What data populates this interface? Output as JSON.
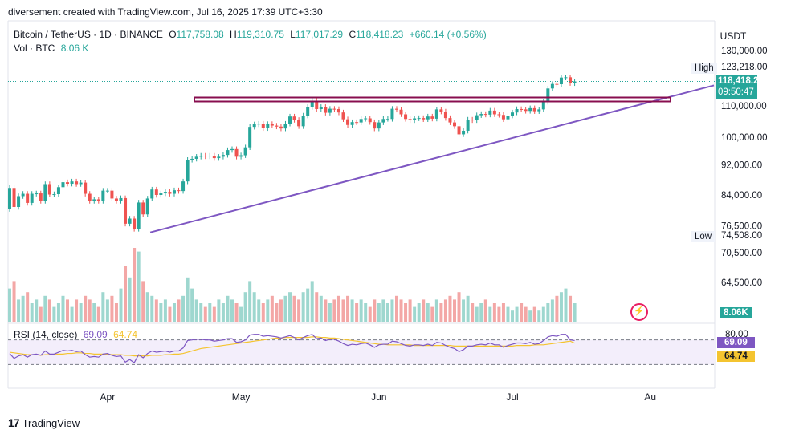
{
  "header": {
    "caption": "diversement created with TradingView.com, Jul 16, 2025 17:39 UTC+3:30"
  },
  "legend": {
    "symbol": "Bitcoin / TetherUS · 1D · BINANCE",
    "o_label": "O",
    "o": "117,758.08",
    "h_label": "H",
    "h": "119,310.75",
    "l_label": "L",
    "l": "117,017.29",
    "c_label": "C",
    "c": "118,418.23",
    "change": "+660.14 (+0.56%)",
    "vol_label": "Vol · BTC",
    "vol_value": "8.06 K",
    "rsi_label": "RSI (14, close)",
    "rsi_value": "69.09",
    "rsi_ma_value": "64.74"
  },
  "price_axis": {
    "currency": "USDT",
    "high_label": "High",
    "high_value": "123,218.00",
    "low_label": "Low",
    "low_value": "74,508.00",
    "last_price": "118,418.23",
    "countdown": "09:50:47",
    "volume_tag": "8.06K",
    "rsi_tag": "69.09",
    "rsi_ma_tag": "64.74"
  },
  "footer": {
    "brand": "TradingView",
    "logo_text": "17"
  },
  "colors": {
    "up": "#26a69a",
    "down": "#ef5350",
    "vol_up": "#9ed7cf",
    "vol_down": "#f3a7a6",
    "trendline": "#7e57c2",
    "box": "#880e4f",
    "rsi_line": "#7e57c2",
    "rsi_ma": "#f4c430",
    "last_price_bg": "#26a69a"
  },
  "chart_data": {
    "type": "candlestick",
    "symbol": "Bitcoin / TetherUS",
    "interval": "1D",
    "price_ticks": [
      130000,
      120000,
      110000,
      100000,
      92000,
      84000,
      76500,
      70500,
      64500,
      60000
    ],
    "price_tick_labels": [
      "130,000.00",
      "",
      "110,000.00",
      "100,000.00",
      "92,000.00",
      "84,000.00",
      "76,500.00",
      "70,500.00",
      "64,500.00",
      ""
    ],
    "x_labels": [
      "Apr",
      "May",
      "Jun",
      "Jul",
      "Au"
    ],
    "x_label_index": [
      22,
      52,
      83,
      113,
      144
    ],
    "first_date": "2025-03-10",
    "close": [
      85800,
      81000,
      83700,
      84300,
      82000,
      84300,
      84400,
      82500,
      86800,
      84100,
      84200,
      86000,
      87300,
      86900,
      87500,
      86800,
      87200,
      84300,
      82500,
      82900,
      82500,
      85100,
      85100,
      83100,
      82500,
      83200,
      77000,
      78200,
      75800,
      82100,
      79200,
      83100,
      85400,
      84000,
      84400,
      84800,
      84300,
      85200,
      85000,
      87500,
      93400,
      93700,
      94300,
      94600,
      94400,
      94600,
      93900,
      94300,
      94800,
      96200,
      96500,
      94300,
      94700,
      97000,
      103200,
      104000,
      104200,
      102800,
      104100,
      103600,
      103300,
      102700,
      104200,
      106500,
      105400,
      103400,
      106800,
      109600,
      111700,
      108900,
      109600,
      107700,
      109000,
      108900,
      107800,
      105600,
      103800,
      104700,
      104600,
      105700,
      105900,
      104700,
      102700,
      104600,
      105700,
      105700,
      109000,
      108700,
      107200,
      105700,
      105300,
      105900,
      106000,
      105600,
      106500,
      105800,
      108800,
      108100,
      106000,
      104600,
      103400,
      100900,
      102000,
      105500,
      105300,
      106900,
      107300,
      107100,
      108400,
      107200,
      107000,
      105600,
      106800,
      107800,
      108900,
      108800,
      108300,
      109200,
      108200,
      108800,
      111300,
      115900,
      117500,
      117400,
      119800,
      119900,
      117800,
      118400
    ],
    "open": [
      80500,
      85800,
      81000,
      83700,
      84300,
      82000,
      84300,
      84400,
      82500,
      86800,
      84100,
      84200,
      86000,
      87300,
      86900,
      87500,
      86800,
      87200,
      84300,
      82500,
      82900,
      82500,
      85100,
      85100,
      83100,
      82500,
      83200,
      77000,
      78200,
      75800,
      82100,
      79200,
      83100,
      85400,
      84000,
      84400,
      84800,
      84300,
      85200,
      85000,
      87500,
      93400,
      93700,
      94300,
      94600,
      94400,
      94600,
      93900,
      94300,
      94800,
      96200,
      96500,
      94300,
      94700,
      97000,
      103200,
      104000,
      104200,
      102800,
      104100,
      103600,
      103300,
      102700,
      104200,
      106500,
      105400,
      103400,
      106800,
      109600,
      111700,
      108900,
      109600,
      107700,
      109000,
      108900,
      107800,
      105600,
      103800,
      104700,
      104600,
      105700,
      105900,
      104700,
      102700,
      104600,
      105700,
      105700,
      109000,
      108700,
      107200,
      105700,
      105300,
      105900,
      106000,
      105600,
      106500,
      105800,
      108800,
      108100,
      106000,
      104600,
      103400,
      100900,
      102000,
      105500,
      105300,
      106900,
      107300,
      107100,
      108400,
      107200,
      107000,
      105600,
      106800,
      107800,
      108900,
      108800,
      108300,
      109200,
      108200,
      108800,
      111300,
      115900,
      117500,
      117400,
      119800,
      119900,
      117758
    ],
    "volume_rel": [
      0.45,
      0.55,
      0.3,
      0.35,
      0.4,
      0.25,
      0.3,
      0.2,
      0.35,
      0.3,
      0.2,
      0.25,
      0.35,
      0.3,
      0.2,
      0.3,
      0.25,
      0.35,
      0.3,
      0.25,
      0.2,
      0.4,
      0.3,
      0.35,
      0.25,
      0.45,
      0.75,
      0.6,
      1.0,
      0.95,
      0.55,
      0.4,
      0.35,
      0.3,
      0.25,
      0.3,
      0.2,
      0.25,
      0.3,
      0.35,
      0.6,
      0.45,
      0.3,
      0.25,
      0.2,
      0.25,
      0.2,
      0.3,
      0.25,
      0.35,
      0.3,
      0.25,
      0.2,
      0.4,
      0.55,
      0.4,
      0.3,
      0.25,
      0.3,
      0.35,
      0.25,
      0.3,
      0.35,
      0.4,
      0.35,
      0.3,
      0.4,
      0.45,
      0.55,
      0.4,
      0.35,
      0.3,
      0.25,
      0.3,
      0.35,
      0.3,
      0.35,
      0.3,
      0.25,
      0.3,
      0.25,
      0.2,
      0.3,
      0.25,
      0.3,
      0.25,
      0.3,
      0.35,
      0.3,
      0.25,
      0.3,
      0.2,
      0.25,
      0.3,
      0.25,
      0.2,
      0.3,
      0.25,
      0.3,
      0.35,
      0.3,
      0.4,
      0.3,
      0.35,
      0.25,
      0.2,
      0.25,
      0.3,
      0.2,
      0.25,
      0.2,
      0.25,
      0.2,
      0.15,
      0.2,
      0.25,
      0.2,
      0.15,
      0.2,
      0.15,
      0.2,
      0.25,
      0.3,
      0.35,
      0.4,
      0.45,
      0.35,
      0.25
    ],
    "rsi": [
      48,
      40,
      44,
      46,
      42,
      46,
      47,
      45,
      52,
      47,
      47,
      50,
      53,
      52,
      53,
      51,
      52,
      46,
      42,
      43,
      42,
      47,
      48,
      45,
      43,
      44,
      34,
      38,
      33,
      46,
      41,
      48,
      52,
      50,
      51,
      52,
      50,
      52,
      52,
      57,
      69,
      70,
      71,
      71,
      70,
      70,
      68,
      69,
      70,
      72,
      72,
      66,
      67,
      70,
      78,
      79,
      79,
      76,
      77,
      76,
      75,
      73,
      75,
      77,
      74,
      70,
      74,
      77,
      79,
      72,
      73,
      69,
      71,
      71,
      68,
      64,
      61,
      63,
      62,
      64,
      65,
      62,
      58,
      62,
      63,
      63,
      68,
      67,
      64,
      61,
      60,
      62,
      62,
      61,
      63,
      61,
      66,
      65,
      61,
      58,
      56,
      51,
      54,
      60,
      60,
      62,
      63,
      62,
      65,
      62,
      62,
      58,
      61,
      63,
      65,
      65,
      64,
      66,
      63,
      64,
      69,
      75,
      77,
      76,
      79,
      79,
      70,
      69
    ],
    "rsi_ma": [
      50,
      49,
      48,
      47,
      46,
      46,
      46,
      45,
      46,
      46,
      46,
      47,
      47,
      48,
      48,
      49,
      49,
      48,
      48,
      47,
      47,
      47,
      47,
      46,
      46,
      46,
      45,
      45,
      44,
      44,
      44,
      44,
      45,
      45,
      45,
      46,
      46,
      47,
      47,
      48,
      50,
      52,
      54,
      56,
      57,
      58,
      59,
      60,
      61,
      62,
      63,
      64,
      65,
      66,
      67,
      68,
      69,
      70,
      71,
      72,
      73,
      73,
      74,
      74,
      74,
      74,
      74,
      74,
      75,
      75,
      74,
      74,
      73,
      73,
      72,
      71,
      70,
      69,
      68,
      67,
      66,
      65,
      64,
      63,
      63,
      62,
      62,
      62,
      62,
      62,
      62,
      61,
      61,
      61,
      61,
      61,
      61,
      61,
      61,
      61,
      60,
      60,
      60,
      60,
      60,
      60,
      60,
      60,
      60,
      60,
      60,
      60,
      60,
      60,
      61,
      61,
      61,
      61,
      62,
      62,
      62,
      63,
      64,
      65,
      66,
      67,
      68,
      64.74
    ],
    "rsi_levels": [
      70,
      30
    ],
    "rsi_ticks": [
      80,
      40
    ],
    "trendline": {
      "start": {
        "index": 28,
        "price": 75000
      },
      "end": {
        "index": 147,
        "price": 117000
      }
    },
    "resistance_zone": {
      "from_index": 40,
      "to_index": 140,
      "low": 111500,
      "high": 112800
    }
  }
}
